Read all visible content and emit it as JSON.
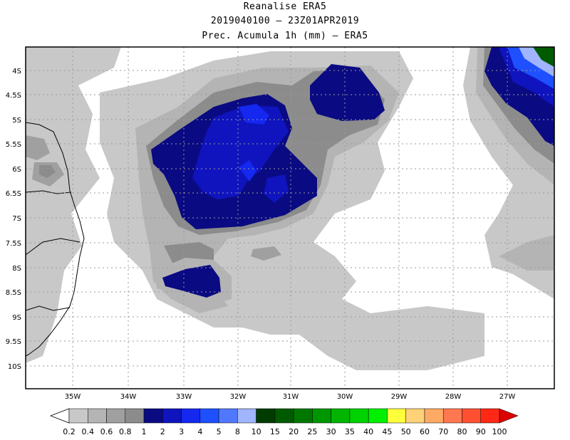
{
  "header": {
    "title": "Reanalise ERA5",
    "period": "2019040100  –  23Z01APR2019",
    "variable": "Prec. Acumula 1h (mm) – ERA5"
  },
  "map": {
    "lat_labels": [
      "4S",
      "4.5S",
      "5S",
      "5.5S",
      "6S",
      "6.5S",
      "7S",
      "7.5S",
      "8S",
      "8.5S",
      "9S",
      "9.5S",
      "10S"
    ],
    "lon_labels": [
      "35W",
      "34W",
      "33W",
      "32W",
      "31W",
      "30W",
      "29W",
      "28W",
      "27W"
    ]
  },
  "colorbar": {
    "labels": [
      "0.2",
      "0.4",
      "0.6",
      "0.8",
      "1",
      "2",
      "3",
      "4",
      "5",
      "8",
      "10",
      "15",
      "20",
      "25",
      "30",
      "35",
      "40",
      "45",
      "50",
      "60",
      "70",
      "80",
      "90",
      "100"
    ],
    "colors": [
      "#c8c8c8",
      "#b4b4b4",
      "#a0a0a0",
      "#8c8c8c",
      "#0a0a82",
      "#0f14be",
      "#1428f0",
      "#1e50ff",
      "#5078ff",
      "#a0b4ff",
      "#003c00",
      "#005a00",
      "#007800",
      "#009600",
      "#00b400",
      "#00d200",
      "#00f000",
      "#ffff3c",
      "#ffd278",
      "#ffaa64",
      "#ff7850",
      "#ff5032",
      "#ff2814",
      "#dc0000"
    ]
  }
}
